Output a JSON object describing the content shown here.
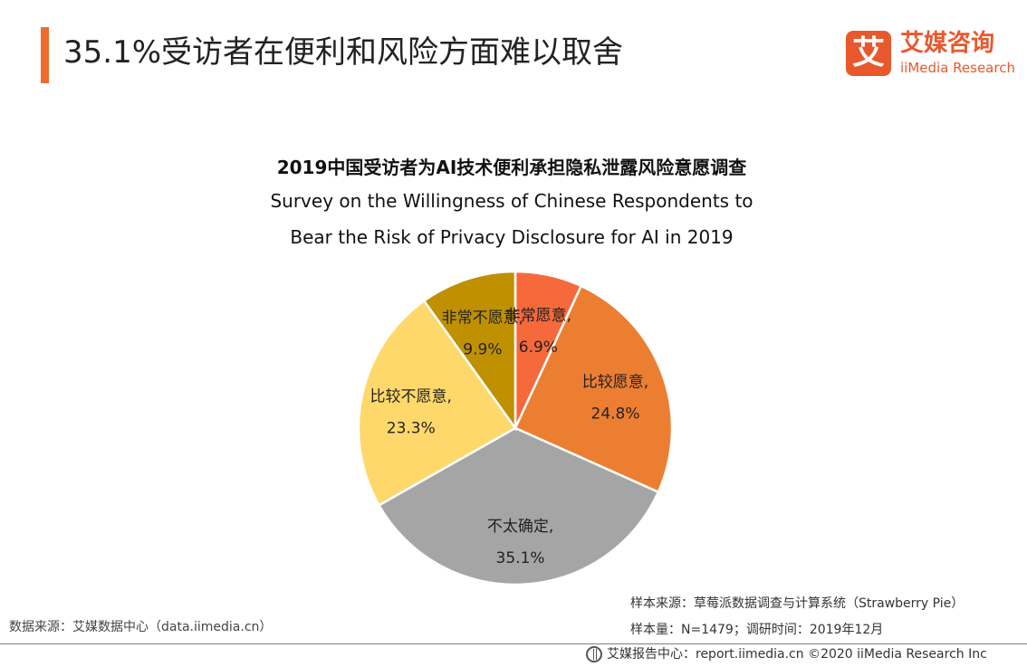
{
  "page": {
    "title": "35.1%受访者在便利和风险方面难以取舍"
  },
  "logo": {
    "mark": "艾",
    "cn": "艾媒咨询",
    "en": "iiMedia Research"
  },
  "chart_data": {
    "type": "pie",
    "title_cn": "2019中国受访者为AI技术便利承担隐私泄露风险意愿调查",
    "title_en_line1": "Survey on the Willingness of Chinese Respondents to",
    "title_en_line2": "Bear the Risk of Privacy Disclosure for AI  in 2019",
    "slices": [
      {
        "label": "非常愿意,",
        "value": 6.9,
        "value_label": "6.9%",
        "color": "#f6693b"
      },
      {
        "label": "比较愿意,",
        "value": 24.8,
        "value_label": "24.8%",
        "color": "#ec7e32"
      },
      {
        "label": "不太确定,",
        "value": 35.1,
        "value_label": "35.1%",
        "color": "#a5a5a5"
      },
      {
        "label": "比较不愿意,",
        "value": 23.3,
        "value_label": "23.3%",
        "color": "#fed86a"
      },
      {
        "label": "非常不愿意,",
        "value": 9.9,
        "value_label": "9.9%",
        "color": "#bf9000"
      }
    ],
    "start": "top",
    "direction": "clockwise",
    "legend": "none"
  },
  "source": {
    "left": "数据来源：艾媒数据中心（data.iimedia.cn）",
    "sample_source": "样本来源：草莓派数据调查与计算系统（Strawberry  Pie）",
    "sample_info": "样本量：N=1479；调研时间：2019年12月"
  },
  "footer": {
    "text": "艾媒报告中心：report.iimedia.cn  ©2020  iiMedia Research Inc"
  }
}
